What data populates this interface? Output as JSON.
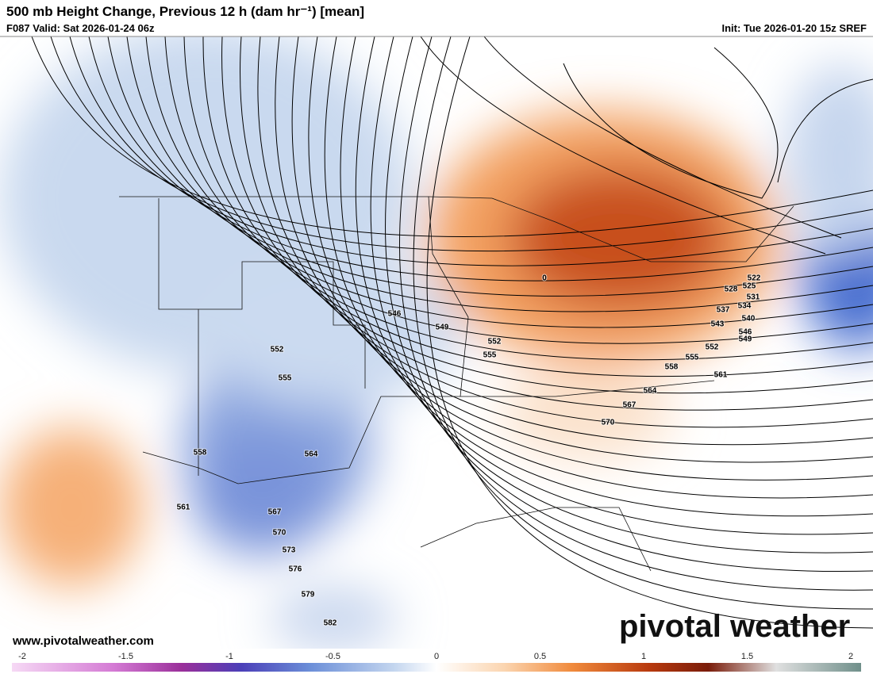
{
  "header": {
    "title": "500 mb Height Change, Previous 12 h (dam hr⁻¹) [mean]",
    "valid": "F087 Valid: Sat 2026-01-24 06z",
    "init": "Init: Tue 2026-01-20 15z SREF"
  },
  "contour_labels": [
    546,
    549,
    552,
    555,
    552,
    555,
    558,
    564,
    561,
    567,
    570,
    573,
    576,
    579,
    582,
    522,
    525,
    528,
    531,
    534,
    537,
    540,
    543,
    546,
    549,
    552,
    555,
    558,
    561,
    564,
    567,
    570,
    0
  ],
  "footer": {
    "website": "www.pivotalweather.com",
    "watermark": "pivotal weather"
  },
  "colorbar": {
    "ticks": [
      -2,
      -1.5,
      -1,
      -0.5,
      0,
      0.5,
      1,
      1.5,
      2
    ]
  }
}
